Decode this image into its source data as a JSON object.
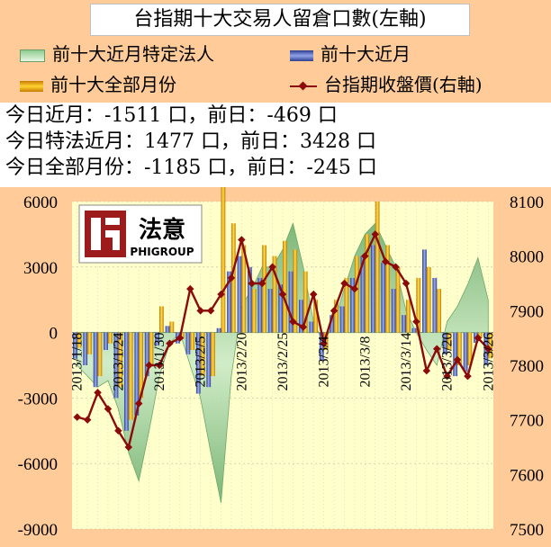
{
  "legend": {
    "title": "台指期十大交易人留倉口數(左軸)",
    "items": [
      {
        "label": "前十大近月特定法人",
        "color": "#9ACD9A"
      },
      {
        "label": "前十大近月",
        "color": "#4A5DB0"
      },
      {
        "label": "前十大全部月份",
        "color": "#E8A800"
      },
      {
        "label": "台指期收盤價(右軸)",
        "color": "#8B0A0A"
      }
    ]
  },
  "summary": {
    "line1": "今日近月：-1511 口，前日：-469 口",
    "line2": "今日特法近月：1477 口，前日：3428 口",
    "line3": "今日全部月份：-1185 口，前日：-245 口"
  },
  "logo": {
    "text": "法意",
    "subtext": "PHIGROUP"
  },
  "chart_data": {
    "type": "bar",
    "y_left": {
      "min": -9000,
      "max": 6000,
      "ticks": [
        6000,
        3000,
        0,
        -3000,
        -6000,
        -9000
      ]
    },
    "y_right": {
      "min": 7500,
      "max": 8100,
      "ticks": [
        8100,
        8000,
        7900,
        7800,
        7700,
        7600,
        7500
      ]
    },
    "x_tick_labels": [
      "2013/1/18",
      "2013/1/24",
      "2013/1/30",
      "2013/2/5",
      "2013/2/20",
      "2013/2/25",
      "2013/3/4",
      "2013/3/8",
      "2013/3/14",
      "2013/3/20",
      "2013/3/26"
    ],
    "x_tick_index": [
      0,
      4,
      8,
      12,
      16,
      20,
      24,
      28,
      32,
      36,
      40
    ],
    "categories_count": 41,
    "series": [
      {
        "name": "前十大近月特定法人",
        "kind": "area",
        "axis": "left",
        "values": [
          -1500,
          -2000,
          -2500,
          -2200,
          -3500,
          -5500,
          -6800,
          -4500,
          -2000,
          -500,
          0,
          -1500,
          -3000,
          -5500,
          -7800,
          -2000,
          1200,
          2000,
          3000,
          3000,
          3800,
          5000,
          3000,
          500,
          -500,
          500,
          2000,
          3500,
          4500,
          5000,
          4000,
          3000,
          1000,
          0,
          -800,
          -1500,
          500,
          1200,
          2200,
          3428,
          1477
        ]
      },
      {
        "name": "前十大近月",
        "kind": "bar",
        "axis": "left",
        "values": [
          -1200,
          -1500,
          -2500,
          -800,
          -3000,
          -4500,
          -3800,
          -2000,
          -600,
          300,
          -500,
          -1000,
          -2800,
          -2500,
          200,
          2800,
          3500,
          3000,
          2500,
          2000,
          2200,
          2800,
          1500,
          500,
          -1300,
          800,
          1200,
          2500,
          3500,
          4000,
          3200,
          2000,
          800,
          200,
          3800,
          2500,
          -1000,
          -2000,
          -1800,
          -469,
          -1511
        ]
      },
      {
        "name": "前十大全部月份",
        "kind": "bar",
        "axis": "left",
        "values": [
          -700,
          -1000,
          -2000,
          -500,
          -2500,
          -4000,
          -3000,
          -1500,
          1200,
          500,
          -300,
          -800,
          -2000,
          -2000,
          6800,
          5000,
          4000,
          2000,
          4000,
          3500,
          4200,
          3800,
          2800,
          1500,
          -800,
          1500,
          2500,
          3500,
          4500,
          6000,
          4000,
          3000,
          1500,
          2500,
          3000,
          2000,
          -800,
          -1500,
          -1500,
          -245,
          -1185
        ]
      },
      {
        "name": "台指期收盤價(右軸)",
        "kind": "line",
        "axis": "right",
        "values": [
          7705,
          7700,
          7750,
          7720,
          7680,
          7650,
          7730,
          7800,
          7800,
          7840,
          7850,
          7940,
          7900,
          7900,
          7930,
          7960,
          8030,
          7950,
          7950,
          7980,
          7930,
          7880,
          7870,
          7930,
          7840,
          7900,
          7950,
          7940,
          8000,
          8040,
          7990,
          7980,
          7950,
          7880,
          7790,
          7830,
          7780,
          7810,
          7780,
          7850,
          7830
        ]
      }
    ]
  }
}
